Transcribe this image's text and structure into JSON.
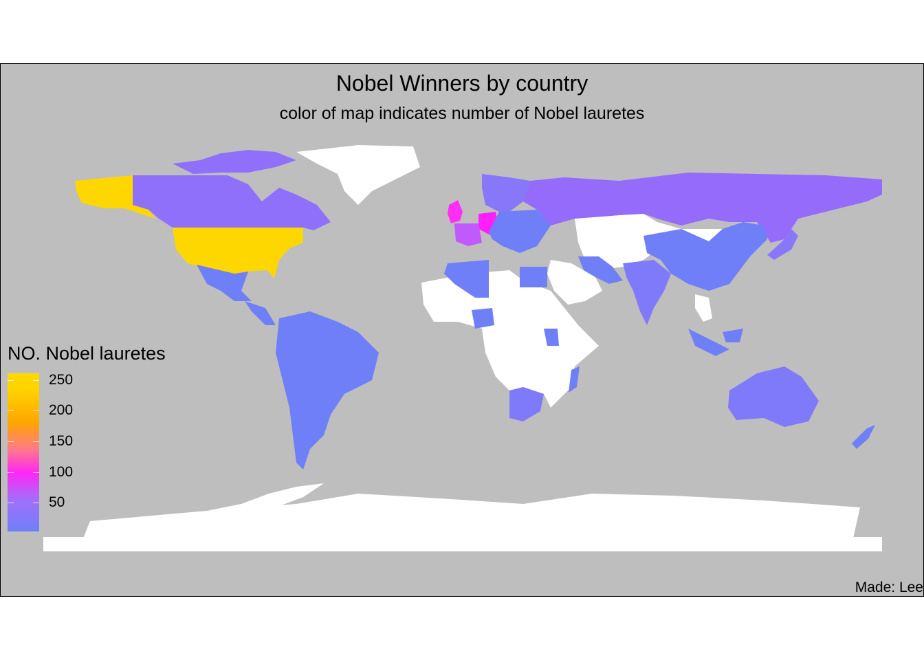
{
  "title": "Nobel Winners by country",
  "subtitle": "color of map indicates number of Nobel lauretes",
  "legend": {
    "title": "NO. Nobel lauretes",
    "ticks": [
      "250",
      "200",
      "150",
      "100",
      "50"
    ]
  },
  "caption": "Made: Lee",
  "colors": {
    "panel_background": "#bebebe",
    "no_data": "#ffffff",
    "low": "#6f7ff8",
    "mid": "#ff26f6",
    "high": "#ffd700"
  },
  "chart_data": {
    "type": "choropleth",
    "title": "Nobel Winners by country",
    "subtitle": "color of map indicates number of Nobel lauretes",
    "legend_title": "NO. Nobel lauretes",
    "scale_range": [
      0,
      260
    ],
    "scale_breaks": [
      50,
      100,
      150,
      200,
      250
    ],
    "regions": [
      {
        "name": "United States",
        "value": 260
      },
      {
        "name": "United Kingdom",
        "value": 100
      },
      {
        "name": "Germany",
        "value": 105
      },
      {
        "name": "France",
        "value": 60
      },
      {
        "name": "Sweden",
        "value": 30
      },
      {
        "name": "Russia",
        "value": 30
      },
      {
        "name": "Canada",
        "value": 25
      },
      {
        "name": "Japan",
        "value": 25
      },
      {
        "name": "Italy",
        "value": 20
      },
      {
        "name": "Switzerland",
        "value": 25
      },
      {
        "name": "Netherlands",
        "value": 20
      },
      {
        "name": "Austria",
        "value": 20
      },
      {
        "name": "Australia",
        "value": 12
      },
      {
        "name": "India",
        "value": 10
      },
      {
        "name": "China",
        "value": 5
      },
      {
        "name": "Brazil",
        "value": 1
      },
      {
        "name": "Argentina",
        "value": 5
      },
      {
        "name": "Mexico",
        "value": 3
      },
      {
        "name": "South Africa",
        "value": 10
      },
      {
        "name": "Egypt",
        "value": 5
      },
      {
        "name": "Algeria",
        "value": 2
      },
      {
        "name": "Nigeria",
        "value": 1
      },
      {
        "name": "Kenya",
        "value": 1
      },
      {
        "name": "Iran",
        "value": 2
      },
      {
        "name": "New Zealand",
        "value": 3
      },
      {
        "name": "Madagascar",
        "value": 1
      },
      {
        "name": "Indonesia",
        "value": 1
      }
    ]
  }
}
